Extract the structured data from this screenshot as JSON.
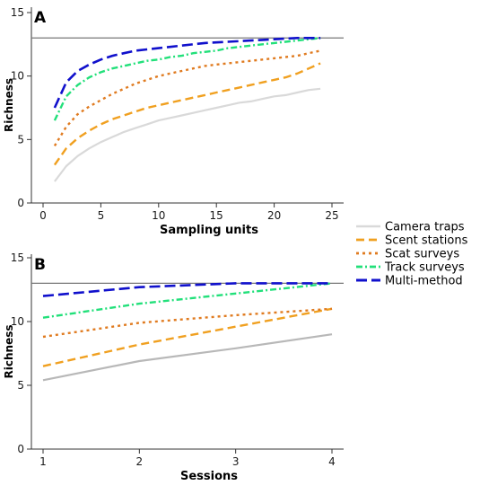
{
  "colors": {
    "camera_traps_a": "#d9d9d9",
    "camera_traps_b": "#b8b8b8",
    "scent_stations": "#f0a020",
    "scat_surveys": "#e07b20",
    "track_surveys": "#22e07a",
    "multi_method": "#1010cc",
    "reference_line": "#777777"
  },
  "legend": {
    "placement": "right, between panels",
    "items": [
      {
        "label": "Camera traps",
        "key": "camera"
      },
      {
        "label": "Scent stations",
        "key": "scent"
      },
      {
        "label": "Scat surveys",
        "key": "scat"
      },
      {
        "label": "Track surveys",
        "key": "track"
      },
      {
        "label": "Multi-method",
        "key": "multi"
      }
    ]
  },
  "chart_data": [
    {
      "panel": "A",
      "type": "line",
      "xlabel": "Sampling units",
      "ylabel": "Richness",
      "xlim": [
        0,
        25
      ],
      "ylim": [
        0,
        15
      ],
      "xticks": [
        0,
        5,
        10,
        15,
        20,
        25
      ],
      "yticks": [
        0,
        5,
        10,
        15
      ],
      "reference_line_y": 13,
      "grid": false,
      "x": [
        1,
        2,
        3,
        4,
        5,
        6,
        7,
        8,
        9,
        10,
        11,
        12,
        13,
        14,
        15,
        16,
        17,
        18,
        19,
        20,
        21,
        22,
        23,
        24
      ],
      "series": [
        {
          "key": "camera",
          "values": [
            1.7,
            2.9,
            3.7,
            4.3,
            4.8,
            5.2,
            5.6,
            5.9,
            6.2,
            6.5,
            6.7,
            6.9,
            7.1,
            7.3,
            7.5,
            7.7,
            7.9,
            8.0,
            8.2,
            8.4,
            8.5,
            8.7,
            8.9,
            9.0
          ]
        },
        {
          "key": "scent",
          "values": [
            3.0,
            4.3,
            5.1,
            5.7,
            6.2,
            6.6,
            6.9,
            7.2,
            7.5,
            7.7,
            7.9,
            8.1,
            8.3,
            8.5,
            8.7,
            8.9,
            9.1,
            9.3,
            9.5,
            9.7,
            9.9,
            10.2,
            10.6,
            11.0
          ]
        },
        {
          "key": "scat",
          "values": [
            4.5,
            6.0,
            7.0,
            7.6,
            8.1,
            8.6,
            9.0,
            9.4,
            9.7,
            10.0,
            10.2,
            10.4,
            10.6,
            10.8,
            10.9,
            11.0,
            11.1,
            11.2,
            11.3,
            11.4,
            11.5,
            11.6,
            11.8,
            12.0
          ]
        },
        {
          "key": "track",
          "values": [
            6.5,
            8.4,
            9.3,
            9.9,
            10.3,
            10.6,
            10.8,
            11.0,
            11.2,
            11.3,
            11.5,
            11.6,
            11.8,
            11.9,
            12.0,
            12.2,
            12.3,
            12.4,
            12.5,
            12.6,
            12.7,
            12.8,
            12.9,
            13.0
          ]
        },
        {
          "key": "multi",
          "values": [
            7.5,
            9.5,
            10.4,
            10.9,
            11.3,
            11.6,
            11.8,
            12.0,
            12.1,
            12.2,
            12.3,
            12.4,
            12.5,
            12.6,
            12.65,
            12.7,
            12.75,
            12.8,
            12.85,
            12.9,
            12.95,
            13.0,
            13.0,
            13.0
          ]
        }
      ]
    },
    {
      "panel": "B",
      "type": "line",
      "xlabel": "Sessions",
      "ylabel": "Richness",
      "xlim": [
        1,
        4
      ],
      "ylim": [
        0,
        15
      ],
      "xticks": [
        1,
        2,
        3,
        4
      ],
      "yticks": [
        0,
        5,
        10,
        15
      ],
      "reference_line_y": 13,
      "grid": false,
      "x": [
        1,
        2,
        3,
        4
      ],
      "series": [
        {
          "key": "camera",
          "values": [
            5.4,
            6.9,
            7.9,
            9.0
          ]
        },
        {
          "key": "scent",
          "values": [
            6.5,
            8.2,
            9.6,
            11.0
          ]
        },
        {
          "key": "scat",
          "values": [
            8.8,
            9.9,
            10.5,
            11.0
          ]
        },
        {
          "key": "track",
          "values": [
            10.3,
            11.4,
            12.2,
            13.0
          ]
        },
        {
          "key": "multi",
          "values": [
            12.0,
            12.7,
            13.0,
            13.0
          ]
        }
      ]
    }
  ]
}
